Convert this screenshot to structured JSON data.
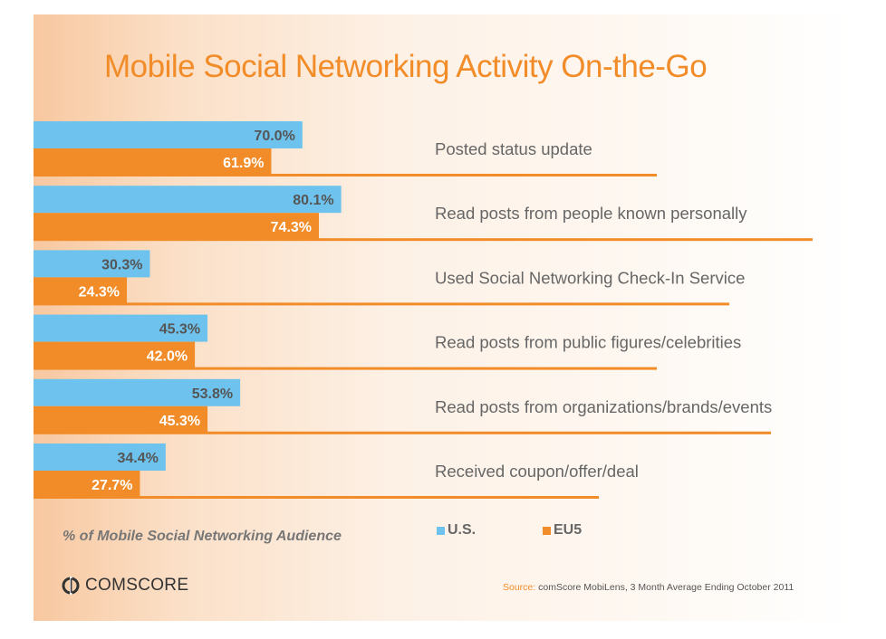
{
  "title": "Mobile Social Networking Activity On-the-Go",
  "axis_note": "% of Mobile Social Networking Audience",
  "legend": [
    {
      "label": "U.S.",
      "color": "#6ec3ee"
    },
    {
      "label": "EU5",
      "color": "#f28c28"
    }
  ],
  "logo_text": "COMSCORE",
  "source": {
    "prefix": "Source:",
    "text": "comScore MobiLens, 3 Month Average Ending October 2011"
  },
  "colors": {
    "us": "#6ec3ee",
    "eu5": "#f28c28",
    "title": "#f28c28"
  },
  "chart_data": {
    "type": "bar",
    "orientation": "horizontal",
    "title": "Mobile Social Networking Activity On-the-Go",
    "xlabel": "% of Mobile Social Networking Audience",
    "xlim": [
      0,
      100
    ],
    "categories": [
      "Posted status update",
      "Read posts from people known personally",
      "Used Social Networking Check-In Service",
      "Read posts from public figures/celebrities",
      "Read posts from organizations/brands/events",
      "Received coupon/offer/deal"
    ],
    "series": [
      {
        "name": "U.S.",
        "values": [
          70.0,
          80.1,
          30.3,
          45.3,
          53.8,
          34.4
        ],
        "labels": [
          "70.0%",
          "80.1%",
          "30.3%",
          "45.3%",
          "53.8%",
          "34.4%"
        ]
      },
      {
        "name": "EU5",
        "values": [
          61.9,
          74.3,
          24.3,
          42.0,
          45.3,
          27.7
        ],
        "labels": [
          "61.9%",
          "74.3%",
          "24.3%",
          "42.0%",
          "45.3%",
          "27.7%"
        ]
      }
    ]
  }
}
